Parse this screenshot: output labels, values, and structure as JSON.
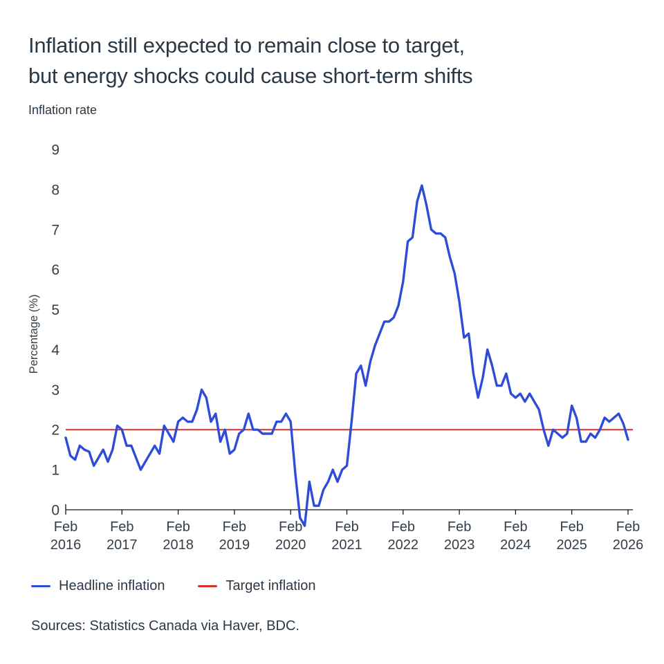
{
  "header": {
    "title_line1": "Inflation still expected to remain close to target,",
    "title_line2": "but energy shocks could cause short-term shifts",
    "subtitle": "Inflation rate"
  },
  "chart_data": {
    "type": "line",
    "title": "Inflation rate",
    "ylabel": "Percentage (%)",
    "ylim": [
      0,
      9
    ],
    "y_ticks": [
      0,
      1,
      2,
      3,
      4,
      5,
      6,
      7,
      8,
      9
    ],
    "x_ticks": [
      {
        "month": "Feb",
        "year": "2016"
      },
      {
        "month": "Feb",
        "year": "2017"
      },
      {
        "month": "Feb",
        "year": "2018"
      },
      {
        "month": "Feb",
        "year": "2019"
      },
      {
        "month": "Feb",
        "year": "2020"
      },
      {
        "month": "Feb",
        "year": "2021"
      },
      {
        "month": "Feb",
        "year": "2022"
      },
      {
        "month": "Feb",
        "year": "2023"
      },
      {
        "month": "Feb",
        "year": "2024"
      },
      {
        "month": "Feb",
        "year": "2025"
      },
      {
        "month": "Feb",
        "year": "2026"
      }
    ],
    "x_start": "Feb 2016",
    "x_end": "Feb 2026",
    "frequency": "monthly",
    "grid": false,
    "legend_position": "bottom",
    "series": [
      {
        "name": "Headline inflation",
        "color": "#2e4cd7",
        "values": [
          1.8,
          1.35,
          1.25,
          1.6,
          1.5,
          1.45,
          1.1,
          1.3,
          1.5,
          1.2,
          1.5,
          2.1,
          2.0,
          1.6,
          1.6,
          1.3,
          1.0,
          1.2,
          1.4,
          1.6,
          1.4,
          2.1,
          1.9,
          1.7,
          2.2,
          2.3,
          2.2,
          2.2,
          2.5,
          3.0,
          2.8,
          2.2,
          2.4,
          1.7,
          2.0,
          1.4,
          1.5,
          1.9,
          2.0,
          2.4,
          2.0,
          2.0,
          1.9,
          1.9,
          1.9,
          2.2,
          2.2,
          2.4,
          2.2,
          0.9,
          -0.2,
          -0.4,
          0.7,
          0.1,
          0.1,
          0.5,
          0.7,
          1.0,
          0.7,
          1.0,
          1.1,
          2.2,
          3.4,
          3.6,
          3.1,
          3.7,
          4.1,
          4.4,
          4.7,
          4.7,
          4.8,
          5.1,
          5.7,
          6.7,
          6.8,
          7.7,
          8.1,
          7.6,
          7.0,
          6.9,
          6.9,
          6.8,
          6.3,
          5.9,
          5.2,
          4.3,
          4.4,
          3.4,
          2.8,
          3.3,
          4.0,
          3.6,
          3.1,
          3.1,
          3.4,
          2.9,
          2.8,
          2.9,
          2.7,
          2.9,
          2.7,
          2.5,
          2.0,
          1.6,
          2.0,
          1.9,
          1.8,
          1.9,
          2.6,
          2.3,
          1.7,
          1.7,
          1.9,
          1.8,
          2.0,
          2.3,
          2.2,
          2.3,
          2.4,
          2.15,
          1.75
        ]
      },
      {
        "name": "Target inflation",
        "color": "#d62f2a",
        "style": "constant",
        "value": 2.0
      }
    ]
  },
  "legend": {
    "items": [
      {
        "label": "Headline inflation",
        "color": "#2e4cd7"
      },
      {
        "label": "Target inflation",
        "color": "#d62f2a"
      }
    ]
  },
  "source": {
    "text": "Sources: Statistics Canada via Haver, BDC."
  }
}
